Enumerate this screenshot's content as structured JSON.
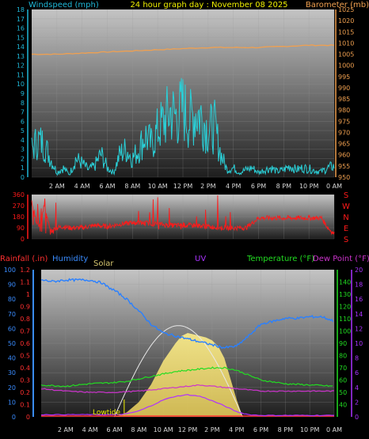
{
  "header": {
    "left_label": "Windspeed (mph)",
    "center_label": "24 hour graph day : November 08 2025",
    "right_label": "Barometer (mb)"
  },
  "colors": {
    "wind": "#2ad0d8",
    "barometer": "#f0a050",
    "direction": "#ff1a1a",
    "humidity": "#2a80ff",
    "rain": "#ff3030",
    "solar": "#f3e07a",
    "uv": "#b030ff",
    "temperature": "#22dd22",
    "dewpoint": "#cc33cc",
    "title": "#f0f000",
    "wind_axis": "#1fb8d8",
    "baro_axis": "#f0a050",
    "humidity_axis": "#3a8cff",
    "rain_axis": "#ff3030",
    "temp_axis": "#22dd22",
    "uv_axis": "#aa33ff"
  },
  "chart_data": [
    {
      "type": "line",
      "title": "24 hour graph day : November 08 2025",
      "x_ticks": [
        "2 AM",
        "4 AM",
        "6 AM",
        "8 AM",
        "10 AM",
        "12 PM",
        "2 PM",
        "4 PM",
        "6 PM",
        "8 PM",
        "10 PM",
        "0 AM"
      ],
      "x_range_hours": [
        0,
        24
      ],
      "y_left": {
        "label": "Windspeed (mph)",
        "range": [
          0,
          18
        ],
        "ticks": [
          0,
          1,
          2,
          3,
          4,
          5,
          6,
          7,
          8,
          9,
          10,
          11,
          12,
          13,
          14,
          15,
          16,
          17,
          18
        ]
      },
      "y_right": {
        "label": "Barometer (mb)",
        "range": [
          950,
          1025
        ],
        "ticks": [
          950,
          955,
          960,
          965,
          970,
          975,
          980,
          985,
          990,
          995,
          1000,
          1005,
          1010,
          1015,
          1020,
          1025
        ]
      },
      "grid": true,
      "series": [
        {
          "name": "Windspeed (mph)",
          "axis": "left",
          "x": [
            0,
            0.5,
            1,
            1.5,
            2,
            2.5,
            3,
            3.5,
            4,
            4.5,
            5,
            5.5,
            6,
            6.5,
            7,
            7.5,
            8,
            8.5,
            9,
            9.5,
            10,
            10.5,
            11,
            11.5,
            12,
            12.5,
            13,
            13.5,
            14,
            14.5,
            15,
            15.5,
            16,
            16.5,
            17,
            17.5,
            18,
            18.5,
            19,
            19.5,
            20,
            20.5,
            21,
            21.5,
            22,
            22.5,
            23,
            23.5,
            24
          ],
          "values": [
            3,
            4,
            3.5,
            2,
            0.5,
            1,
            0.3,
            2,
            1.5,
            0.8,
            1.2,
            2.5,
            1,
            0.5,
            2.5,
            3,
            2,
            3,
            4.5,
            3.5,
            5,
            6,
            7,
            6.5,
            7.5,
            6,
            7,
            6.5,
            5,
            5.5,
            2.5,
            0.8,
            1,
            0.5,
            0.8,
            1,
            0.5,
            0.8,
            1,
            0.6,
            0.8,
            1.2,
            0.8,
            1,
            0.9,
            0.7,
            0.6,
            1,
            1.2
          ]
        },
        {
          "name": "Barometer (mb)",
          "axis": "right",
          "x": [
            0,
            2,
            4,
            6,
            8,
            10,
            12,
            14,
            16,
            18,
            20,
            22,
            24
          ],
          "values": [
            1005,
            1005,
            1005.5,
            1006,
            1006.5,
            1007,
            1007.5,
            1008,
            1008,
            1008,
            1008.5,
            1009,
            1009
          ]
        }
      ]
    },
    {
      "type": "scatter",
      "y_left": {
        "label": "",
        "range": [
          0,
          360
        ],
        "ticks": [
          0,
          90,
          180,
          270,
          360
        ]
      },
      "y_right": {
        "ticks": [
          "S",
          "E",
          "N",
          "W",
          "S"
        ]
      },
      "x_range_hours": [
        0,
        24
      ],
      "series": [
        {
          "name": "Wind direction",
          "x": [
            0,
            0.5,
            1,
            1.5,
            2,
            2.5,
            3,
            4,
            5,
            6,
            7,
            8,
            9,
            10,
            11,
            12,
            13,
            14,
            15,
            16,
            17,
            18,
            19,
            20,
            21,
            22,
            23,
            23.5,
            24
          ],
          "values": [
            300,
            80,
            270,
            60,
            90,
            100,
            90,
            90,
            110,
            100,
            120,
            130,
            130,
            120,
            110,
            110,
            110,
            100,
            90,
            90,
            90,
            170,
            170,
            170,
            170,
            170,
            170,
            90,
            40
          ]
        }
      ]
    },
    {
      "type": "line",
      "x_ticks": [
        "2 AM",
        "4 AM",
        "6 AM",
        "8 AM",
        "10 AM",
        "12 PM",
        "2 PM",
        "4 PM",
        "6 PM",
        "8 PM",
        "10 PM",
        "0 AM"
      ],
      "x_range_hours": [
        0,
        24
      ],
      "labels": {
        "rain": "Rainfall (.in)",
        "humidity": "Humidity",
        "solar": "Solar",
        "uv": "UV",
        "temperature": "Temperature (°F)",
        "dewpoint": "Dew Point (°F)",
        "lowtide": "Lowtide"
      },
      "axes": {
        "humidity": {
          "range": [
            0,
            100
          ],
          "ticks": [
            0,
            10,
            20,
            30,
            40,
            50,
            60,
            70,
            80,
            90,
            100
          ]
        },
        "rain": {
          "range": [
            0,
            1.2
          ],
          "ticks": [
            "0",
            "0.1",
            "0.2",
            "0.3",
            "0.4",
            "0.5",
            "0.6",
            "0.7",
            "0.8",
            "0.9",
            "1",
            "1.1",
            "1.2"
          ]
        },
        "temperature": {
          "range": [
            30,
            150
          ],
          "ticks": [
            40,
            50,
            60,
            70,
            80,
            90,
            100,
            110,
            120,
            130,
            140
          ]
        },
        "uv": {
          "range": [
            0,
            20
          ],
          "ticks": [
            0,
            2,
            4,
            6,
            8,
            10,
            12,
            14,
            16,
            18,
            20
          ]
        }
      },
      "series": [
        {
          "name": "Humidity",
          "axis": "humidity",
          "x": [
            0,
            1,
            2,
            3,
            4,
            5,
            5.5,
            6,
            7,
            8,
            9,
            10,
            11,
            12,
            13,
            14,
            15,
            16,
            17,
            18,
            19,
            20,
            21,
            22,
            23,
            24
          ],
          "values": [
            93,
            92,
            93,
            93,
            93,
            91,
            88,
            86,
            80,
            72,
            63,
            57,
            55,
            53,
            51,
            49,
            47,
            48,
            55,
            63,
            65,
            67,
            67,
            68,
            68,
            65
          ]
        },
        {
          "name": "Temperature (°F)",
          "axis": "temperature",
          "x": [
            0,
            2,
            4,
            6,
            7,
            8,
            9,
            10,
            11,
            12,
            13,
            14,
            15,
            16,
            17,
            18,
            20,
            22,
            24
          ],
          "values": [
            56,
            55,
            57,
            58,
            59,
            61,
            63,
            65,
            67,
            68,
            69,
            70,
            70,
            68,
            64,
            60,
            57,
            56,
            55
          ]
        },
        {
          "name": "Dew Point (°F)",
          "axis": "temperature",
          "x": [
            0,
            2,
            4,
            6,
            8,
            10,
            11,
            12,
            13,
            14,
            15,
            16,
            17,
            18,
            20,
            22,
            24
          ],
          "values": [
            53,
            51,
            50,
            50,
            51,
            53,
            54,
            55,
            56,
            55,
            54,
            53,
            52,
            51,
            51,
            51,
            51
          ]
        },
        {
          "name": "UV",
          "axis": "uv",
          "x": [
            0,
            6,
            7,
            8,
            9,
            10,
            11,
            12,
            13,
            14,
            15,
            16,
            17,
            18,
            24
          ],
          "values": [
            0.3,
            0.3,
            0.4,
            0.8,
            1.5,
            2.3,
            2.8,
            3,
            2.8,
            2.2,
            1.5,
            0.7,
            0.3,
            0.2,
            0.2
          ]
        },
        {
          "name": "Solar",
          "axis": "solar",
          "x": [
            6,
            7,
            8,
            9,
            10,
            11,
            11.5,
            12,
            12.5,
            13,
            13.5,
            14,
            14.5,
            15,
            16,
            16.5
          ],
          "values": [
            0,
            3,
            10,
            22,
            38,
            50,
            55,
            57,
            56,
            55,
            54,
            52,
            48,
            40,
            12,
            0
          ]
        },
        {
          "name": "Rainfall (.in)",
          "axis": "rain",
          "x": [
            0,
            24
          ],
          "values": [
            0,
            0
          ]
        }
      ]
    }
  ]
}
